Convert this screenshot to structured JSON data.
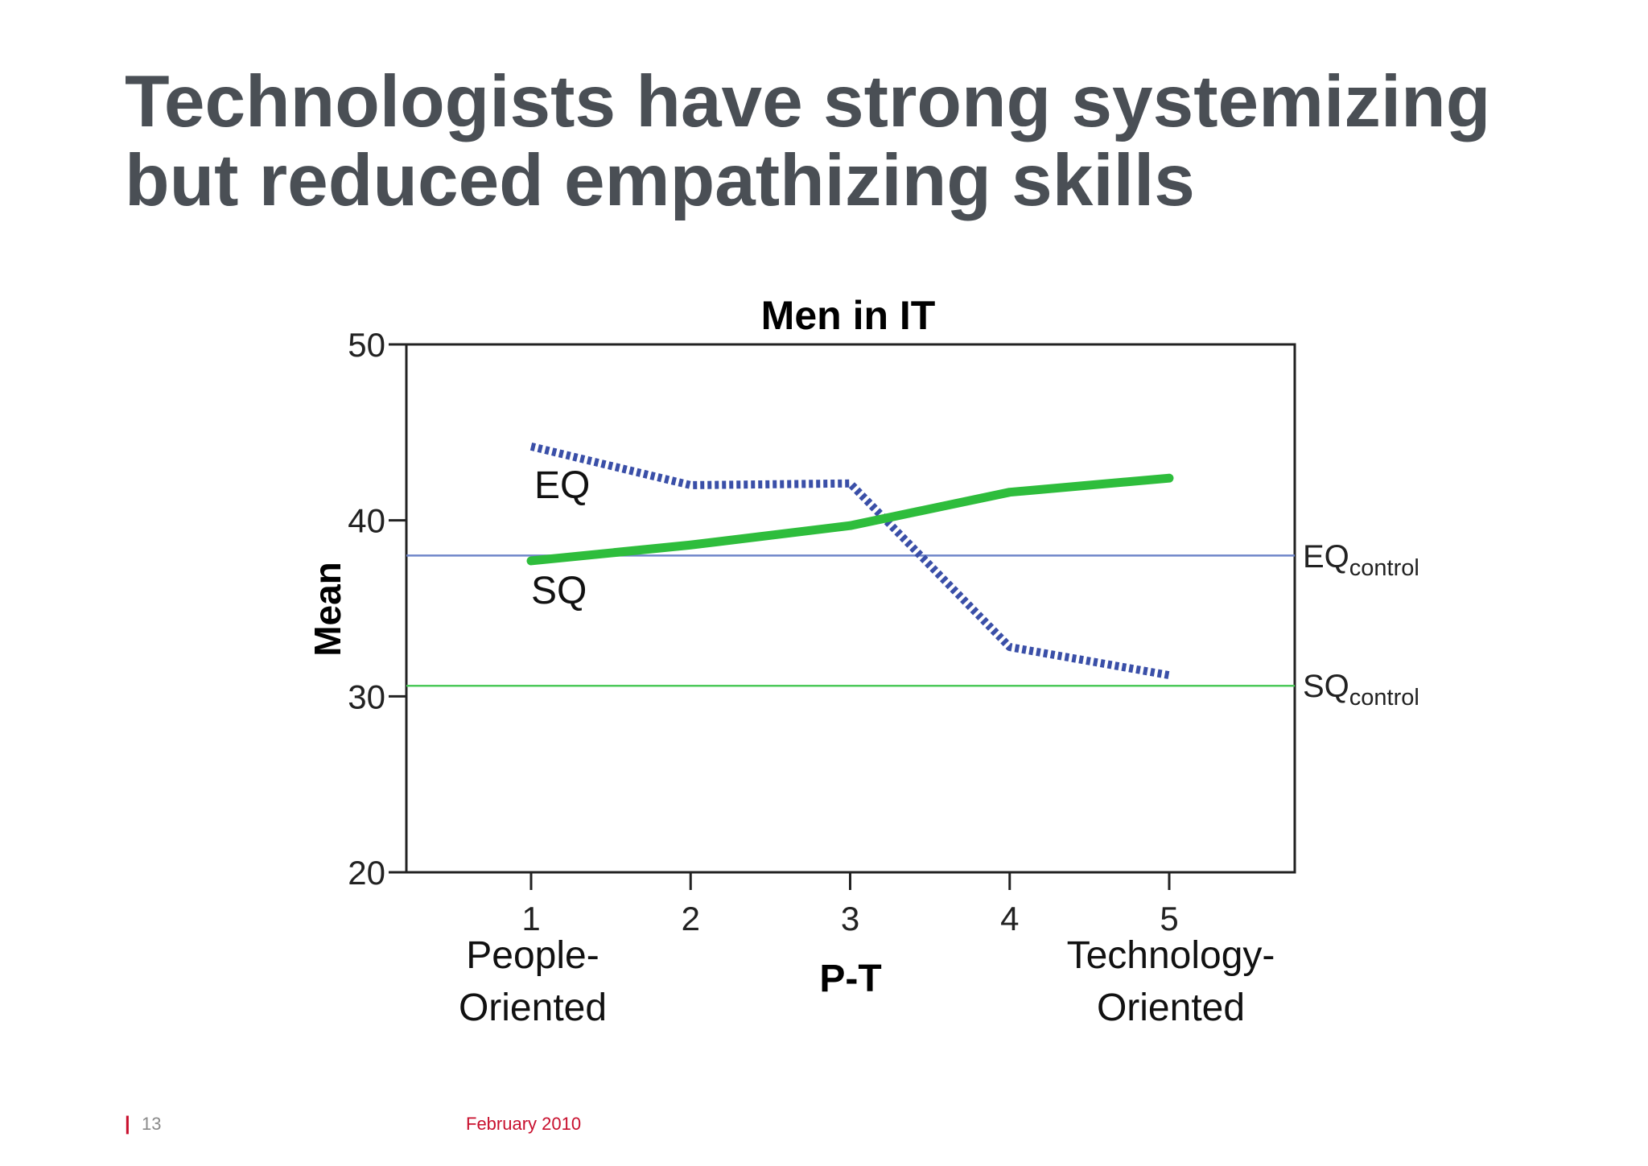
{
  "slide": {
    "title_line1": "Technologists have strong systemizing",
    "title_line2": "but reduced empathizing skills"
  },
  "footer": {
    "separator": "|",
    "page_number": "13",
    "date": "February 2010",
    "accent_color": "#c8102e"
  },
  "chart_data": {
    "type": "line",
    "title": "Men in IT",
    "xlabel": "P-T",
    "ylabel": "Mean",
    "x": [
      1,
      2,
      3,
      4,
      5
    ],
    "x_tick_labels": [
      "1",
      "2",
      "3",
      "4",
      "5"
    ],
    "x_end_labels": {
      "left": [
        "People-",
        "Oriented"
      ],
      "right": [
        "Technology-",
        "Oriented"
      ]
    },
    "ylim": [
      20,
      50
    ],
    "y_ticks": [
      20,
      30,
      40,
      50
    ],
    "grid": false,
    "series": [
      {
        "name": "EQ",
        "values": [
          44.2,
          42.0,
          42.1,
          32.8,
          31.2
        ],
        "color": "#3a4fa8",
        "style": "dotted"
      },
      {
        "name": "SQ",
        "values": [
          37.7,
          38.6,
          39.7,
          41.6,
          42.4
        ],
        "color": "#2ebd3c",
        "style": "solid"
      }
    ],
    "reference_lines": [
      {
        "name": "EQ",
        "subscript": "control",
        "value": 38.0,
        "color": "#6f86c9"
      },
      {
        "name": "SQ",
        "subscript": "control",
        "value": 30.6,
        "color": "#4cc95a"
      }
    ]
  }
}
